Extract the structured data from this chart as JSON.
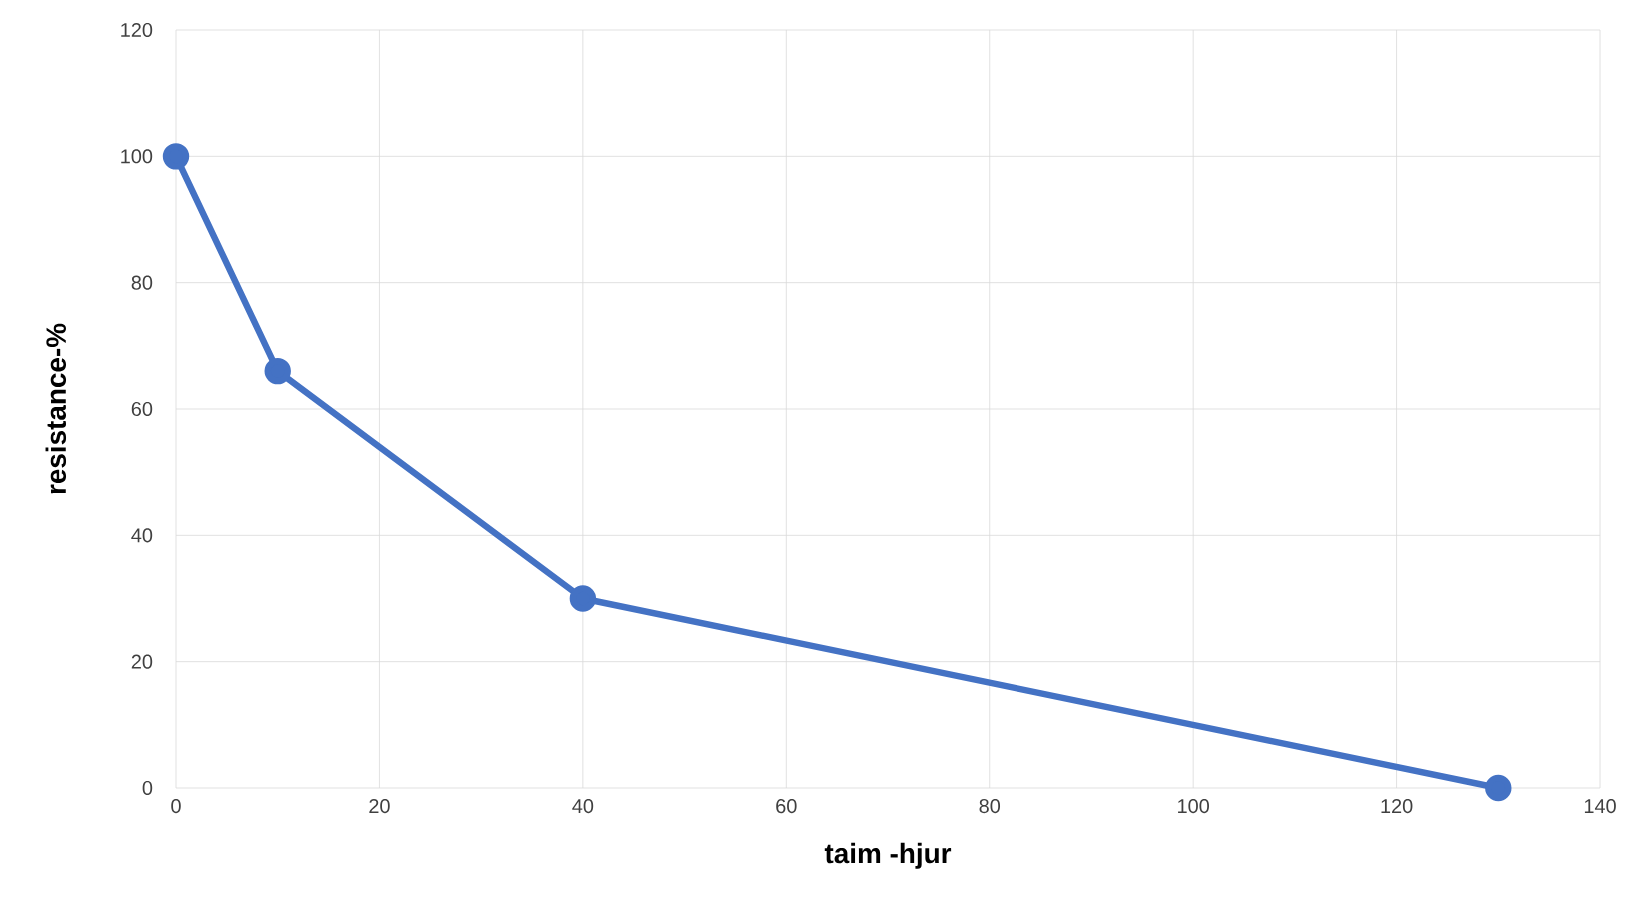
{
  "chart_data": {
    "type": "line",
    "xlabel": "taim -hjur",
    "ylabel": "resistance-%",
    "x": [
      0,
      10,
      40,
      130
    ],
    "series": [
      {
        "color": "#4472c4",
        "values": [
          100,
          66,
          30,
          0
        ]
      }
    ],
    "xlim": [
      0,
      140
    ],
    "ylim": [
      0,
      120
    ],
    "xticks": [
      0,
      20,
      40,
      60,
      80,
      100,
      120,
      140
    ],
    "yticks": [
      0,
      20,
      40,
      60,
      80,
      100,
      120
    ],
    "grid": true,
    "marker": "circle",
    "line_style": "solid"
  }
}
